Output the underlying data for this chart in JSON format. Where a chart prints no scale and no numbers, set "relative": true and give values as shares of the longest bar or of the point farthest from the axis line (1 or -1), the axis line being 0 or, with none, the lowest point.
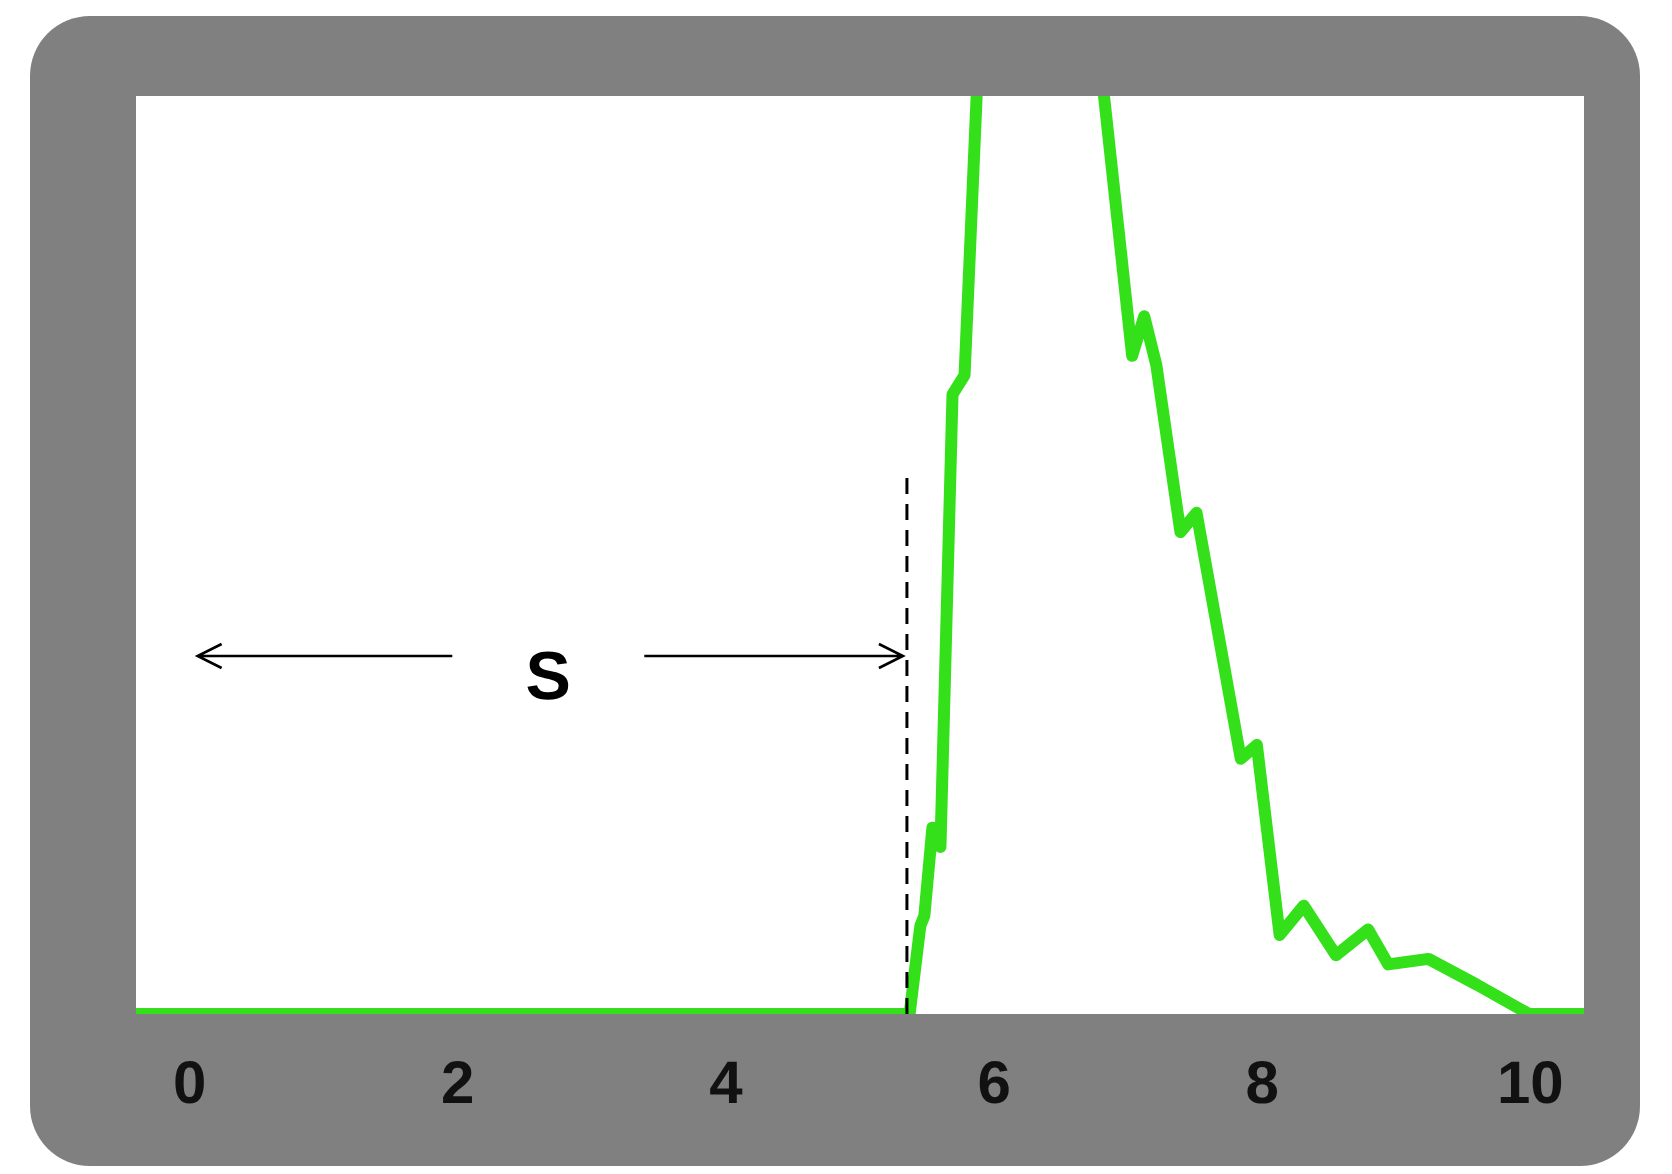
{
  "chart_data": {
    "type": "line",
    "relative": true,
    "x": [
      -0.4,
      5.37,
      5.45,
      5.48,
      5.54,
      5.6,
      5.69,
      5.78,
      5.87,
      6.3,
      6.82,
      7.03,
      7.12,
      7.21,
      7.39,
      7.51,
      7.84,
      7.96,
      8.13,
      8.31,
      8.55,
      8.79,
      8.94,
      9.24,
      9.6,
      9.99,
      10.4
    ],
    "series": [
      {
        "color": "#33e01a",
        "values": [
          0,
          0,
          0.096,
          0.107,
          0.203,
          0.182,
          0.675,
          0.696,
          1,
          null,
          1,
          0.717,
          0.76,
          0.707,
          0.525,
          0.546,
          0.278,
          0.293,
          0.086,
          0.118,
          0.064,
          0.092,
          0.054,
          0.06,
          0.032,
          0,
          0
        ]
      }
    ],
    "xlim": [
      -0.4,
      10.4
    ],
    "xticks": [
      0,
      2,
      4,
      6,
      8,
      10
    ],
    "ref_lines": [
      {
        "axis": "x",
        "value": 5.35,
        "line_style": "dashed",
        "color": "#000000"
      }
    ],
    "annotations": [
      "S"
    ],
    "marker": "none",
    "legend": false,
    "grid": false
  }
}
